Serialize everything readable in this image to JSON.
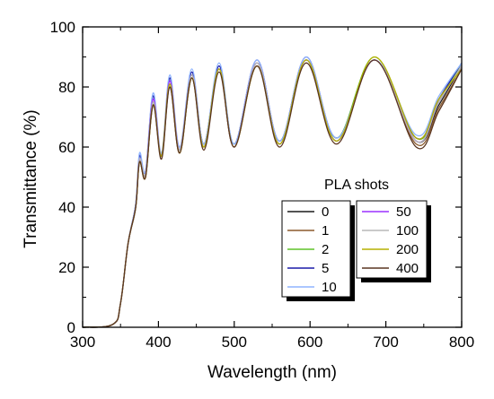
{
  "chart_data": {
    "type": "line",
    "xlabel": "Wavelength (nm)",
    "ylabel": "Transmittance (%)",
    "xlim": [
      300,
      800
    ],
    "ylim": [
      0,
      100
    ],
    "x_ticks": [
      300,
      400,
      500,
      600,
      700,
      800
    ],
    "y_ticks": [
      0,
      20,
      40,
      60,
      80,
      100
    ],
    "grid": false,
    "legend": {
      "title": "PLA shots",
      "placement": "lower-right",
      "columns": 2
    },
    "x": [
      300,
      340,
      350,
      360,
      370,
      375,
      383,
      393,
      404,
      415,
      428,
      444,
      460,
      480,
      500,
      530,
      560,
      595,
      635,
      685,
      740,
      770,
      800
    ],
    "series": [
      {
        "name": "0",
        "color": "#1a1a1a",
        "values": [
          0,
          1,
          8,
          28,
          40,
          56,
          51,
          75,
          57,
          81,
          59,
          84,
          60,
          86,
          60,
          88,
          61,
          89,
          62,
          89,
          62,
          74,
          87
        ]
      },
      {
        "name": "1",
        "color": "#8b5a2b",
        "values": [
          0,
          1,
          8,
          28,
          40,
          55,
          50,
          74,
          57,
          80,
          58,
          83,
          60,
          86,
          60,
          87,
          61,
          89,
          62,
          89,
          61,
          73,
          86
        ]
      },
      {
        "name": "2",
        "color": "#5fc428",
        "values": [
          0,
          1,
          8,
          28,
          40,
          56,
          51,
          75,
          57,
          81,
          59,
          84,
          61,
          86,
          61,
          88,
          62,
          89,
          63,
          90,
          63,
          75,
          88
        ]
      },
      {
        "name": "5",
        "color": "#1a1aa8",
        "values": [
          0,
          1,
          8,
          28,
          41,
          57,
          52,
          77,
          57,
          83,
          59,
          85,
          61,
          87,
          61,
          89,
          62,
          90,
          63,
          89,
          63,
          76,
          88
        ]
      },
      {
        "name": "10",
        "color": "#8fb4ff",
        "values": [
          0,
          1,
          8,
          28,
          41,
          58,
          52,
          78,
          58,
          84,
          60,
          86,
          61,
          88,
          61,
          89,
          62,
          90,
          63,
          89,
          64,
          77,
          88
        ]
      },
      {
        "name": "50",
        "color": "#9b30ff",
        "values": [
          0,
          1,
          8,
          28,
          40,
          56,
          51,
          76,
          57,
          82,
          59,
          84,
          60,
          86,
          60,
          88,
          61,
          89,
          62,
          89,
          62,
          75,
          87
        ]
      },
      {
        "name": "100",
        "color": "#b8b8b8",
        "values": [
          0,
          1,
          8,
          28,
          40,
          56,
          51,
          75,
          57,
          81,
          59,
          84,
          60,
          86,
          60,
          88,
          61,
          89,
          62,
          89,
          62,
          75,
          87
        ]
      },
      {
        "name": "200",
        "color": "#b5b000",
        "values": [
          0,
          1,
          8,
          28,
          40,
          55,
          50,
          74,
          57,
          81,
          58,
          83,
          60,
          86,
          60,
          87,
          61,
          89,
          62,
          90,
          63,
          76,
          86
        ]
      },
      {
        "name": "400",
        "color": "#5a3520",
        "values": [
          0,
          1,
          8,
          28,
          40,
          55,
          50,
          74,
          56,
          80,
          58,
          83,
          59,
          85,
          60,
          87,
          60,
          88,
          61,
          89,
          60,
          72,
          86
        ]
      }
    ]
  }
}
